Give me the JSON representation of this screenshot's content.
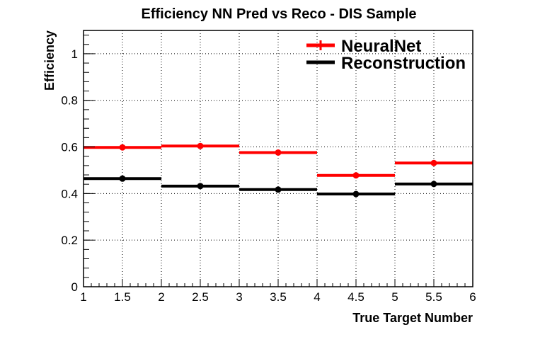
{
  "chart_data": {
    "type": "bar",
    "title": "Efficiency NN Pred vs Reco - DIS Sample",
    "xlabel": "True Target Number",
    "ylabel": "Efficiency",
    "xlim": [
      1,
      6
    ],
    "ylim": [
      0,
      1.1
    ],
    "grid": true,
    "legend_position": "top-right",
    "x_ticks": [
      "1",
      "1.5",
      "2",
      "2.5",
      "3",
      "3.5",
      "4",
      "4.5",
      "5",
      "5.5",
      "6"
    ],
    "y_ticks": [
      "0",
      "0.2",
      "0.4",
      "0.6",
      "0.8",
      "1"
    ],
    "bin_edges": [
      1,
      2,
      3,
      4,
      5,
      6
    ],
    "bin_centers": [
      1.5,
      2.5,
      3.5,
      4.5,
      5.5
    ],
    "series": [
      {
        "name": "NeuralNet",
        "color": "#ff0000",
        "values": [
          0.598,
          0.604,
          0.576,
          0.478,
          0.531
        ]
      },
      {
        "name": "Reconstruction",
        "color": "#000000",
        "values": [
          0.464,
          0.432,
          0.417,
          0.398,
          0.441
        ]
      }
    ]
  }
}
